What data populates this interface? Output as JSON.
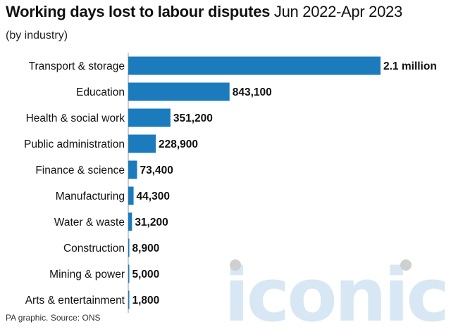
{
  "header": {
    "title_main": "Working days lost to labour disputes",
    "title_period": "Jun 2022-Apr 2023",
    "subtitle": "(by industry)"
  },
  "footer": {
    "source": "PA graphic. Source: ONS"
  },
  "watermark": {
    "text": "iconic"
  },
  "colors": {
    "bar": "#1b7bbd",
    "axis": "#9a9a9a",
    "watermark": "#d7e7f3",
    "watermark_dots": "#cfcfcf"
  },
  "chart_data": {
    "type": "bar",
    "orientation": "horizontal",
    "title": "Working days lost to labour disputes",
    "subtitle": "(by industry)",
    "categories": [
      "Transport & storage",
      "Education",
      "Health & social work",
      "Public administration",
      "Finance & science",
      "Manufacturing",
      "Water & waste",
      "Construction",
      "Mining & power",
      "Arts & entertainment"
    ],
    "values": [
      2100000,
      843100,
      351200,
      228900,
      73400,
      44300,
      31200,
      8900,
      5000,
      1800
    ],
    "value_labels": [
      "2.1 million",
      "843,100",
      "351,200",
      "228,900",
      "73,400",
      "44,300",
      "31,200",
      "8,900",
      "5,000",
      "1,800"
    ],
    "xlim": [
      0,
      2100000
    ],
    "grid": false,
    "legend": "none"
  }
}
